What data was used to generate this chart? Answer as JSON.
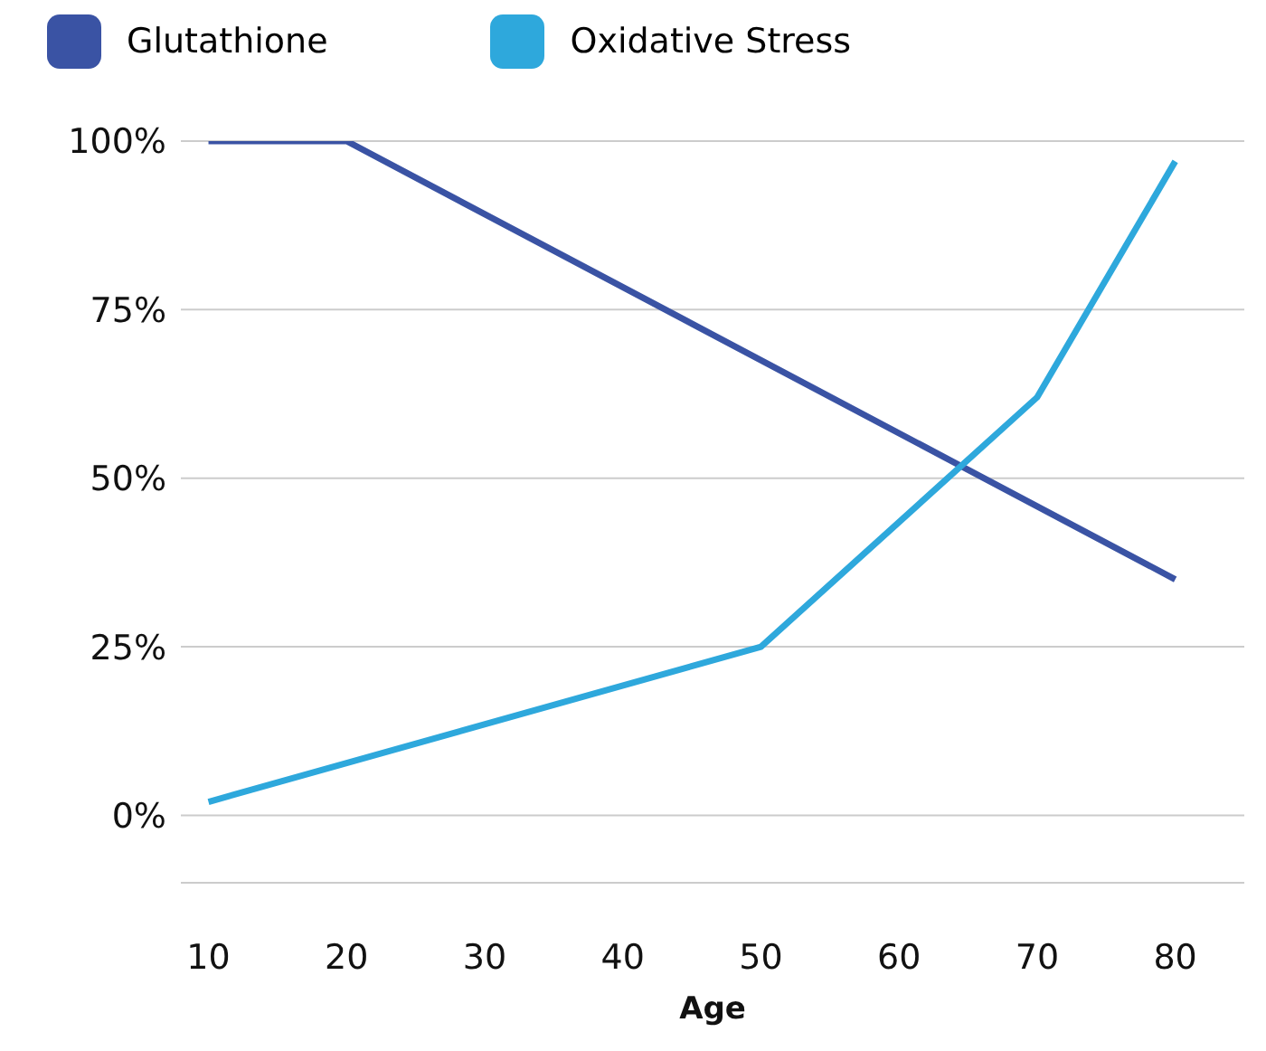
{
  "chart_data": {
    "type": "line",
    "xlabel": "Age",
    "xlim": [
      8,
      85
    ],
    "xticks": [
      10,
      20,
      30,
      40,
      50,
      60,
      70,
      80
    ],
    "ylim": [
      -10,
      100
    ],
    "yticks": [
      {
        "value": 0,
        "label": "0%"
      },
      {
        "value": 25,
        "label": "25%"
      },
      {
        "value": 50,
        "label": "50%"
      },
      {
        "value": 75,
        "label": "75%"
      },
      {
        "value": 100,
        "label": "100%"
      }
    ],
    "grid": "y",
    "legend": "top left",
    "marker": "none",
    "line_style": "solid",
    "series": [
      {
        "name": "Glutathione",
        "color": "#3a53a4",
        "x": [
          10,
          20,
          80
        ],
        "values": [
          100,
          100,
          35
        ]
      },
      {
        "name": "Oxidative Stress",
        "color": "#2ea8dc",
        "x": [
          10,
          50,
          70,
          80
        ],
        "values": [
          2,
          25,
          62,
          97
        ]
      }
    ]
  }
}
